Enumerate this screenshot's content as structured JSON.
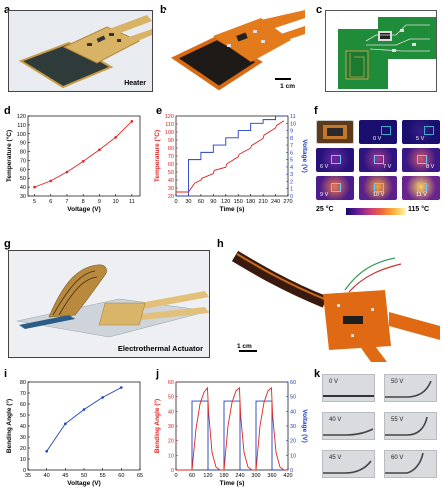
{
  "panels": {
    "a": {
      "label": "a",
      "caption": "Heater"
    },
    "b": {
      "label": "b",
      "scale": "1 cm"
    },
    "c": {
      "label": "c"
    },
    "d": {
      "label": "d"
    },
    "e": {
      "label": "e"
    },
    "f": {
      "label": "f",
      "frames": [
        "0 V",
        "5 V",
        "6 V",
        "7 V",
        "8 V",
        "9 V",
        "10 V",
        "11 V"
      ],
      "scale_min": "25 °C",
      "scale_max": "115 °C"
    },
    "g": {
      "label": "g",
      "caption": "Electrothermal Actuator"
    },
    "h": {
      "label": "h",
      "scale": "1 cm"
    },
    "i": {
      "label": "i"
    },
    "j": {
      "label": "j"
    },
    "k": {
      "label": "k",
      "frames": [
        "0 V",
        "50 V",
        "40 V",
        "55 V",
        "45 V",
        "60 V"
      ]
    }
  },
  "chart_data": [
    {
      "id": "d",
      "type": "line",
      "xlabel": "Voltage (V)",
      "ylabel": "Temperature (°C)",
      "x": [
        5,
        6,
        7,
        8,
        9,
        10,
        11
      ],
      "series": [
        {
          "values": [
            40,
            47,
            57,
            69,
            82,
            96,
            114
          ],
          "color": "#e32222"
        }
      ],
      "xlim": [
        4.6,
        11.5
      ],
      "ylim": [
        30,
        120
      ],
      "xticks": [
        5,
        6,
        7,
        8,
        9,
        10,
        11
      ],
      "yticks": [
        30,
        40,
        50,
        60,
        70,
        80,
        90,
        100,
        110,
        120
      ]
    },
    {
      "id": "e",
      "type": "line",
      "xlabel": "Time (s)",
      "ylabel": "Temperature (°C)",
      "y2label": "Voltage (V)",
      "xlim": [
        0,
        270
      ],
      "ylim": [
        20,
        120
      ],
      "y2lim": [
        0,
        11
      ],
      "xticks": [
        0,
        30,
        60,
        90,
        120,
        150,
        180,
        210,
        240,
        270
      ],
      "yticks": [
        20,
        30,
        40,
        50,
        60,
        70,
        80,
        90,
        100,
        110,
        120
      ],
      "y2ticks": [
        0,
        1,
        2,
        3,
        4,
        5,
        6,
        7,
        8,
        9,
        10,
        11
      ],
      "temperature": {
        "color": "#e32222",
        "t": [
          0,
          30,
          45,
          60,
          62,
          90,
          92,
          120,
          122,
          150,
          152,
          180,
          182,
          210,
          212,
          240,
          242,
          260
        ],
        "v": [
          25,
          25,
          36,
          40,
          42,
          48,
          52,
          56,
          60,
          69,
          72,
          80,
          83,
          92,
          96,
          105,
          108,
          114
        ]
      },
      "voltage": {
        "color": "#1f3fbf",
        "t": [
          0,
          30,
          30,
          60,
          60,
          90,
          90,
          120,
          120,
          150,
          150,
          180,
          180,
          210,
          210,
          240,
          240,
          260
        ],
        "v": [
          0,
          0,
          5,
          5,
          6,
          6,
          7,
          7,
          8,
          8,
          9,
          9,
          10,
          10,
          10.5,
          10.5,
          11,
          11
        ]
      }
    },
    {
      "id": "i",
      "type": "line",
      "xlabel": "Voltage (V)",
      "ylabel": "Bending Angle (°)",
      "x": [
        40,
        45,
        50,
        55,
        60
      ],
      "series": [
        {
          "values": [
            17,
            42,
            55,
            66,
            75
          ],
          "color": "#1f3fbf"
        }
      ],
      "xlim": [
        35,
        65
      ],
      "ylim": [
        0,
        80
      ],
      "xticks": [
        35,
        40,
        45,
        50,
        55,
        60,
        65
      ],
      "yticks": [
        0,
        10,
        20,
        30,
        40,
        50,
        60,
        70,
        80
      ]
    },
    {
      "id": "j",
      "type": "line",
      "xlabel": "Time (s)",
      "ylabel": "Bending Angle (°)",
      "y2label": "Voltage (V)",
      "xlim": [
        0,
        420
      ],
      "ylim": [
        0,
        60
      ],
      "y2lim": [
        0,
        60
      ],
      "xticks": [
        0,
        60,
        120,
        180,
        240,
        300,
        360,
        420
      ],
      "yticks": [
        0,
        10,
        20,
        30,
        40,
        50,
        60
      ],
      "y2ticks": [
        0,
        10,
        20,
        30,
        40,
        50,
        60
      ],
      "angle": {
        "color": "#e32222",
        "t": [
          0,
          60,
          75,
          90,
          105,
          118,
          122,
          135,
          150,
          165,
          180,
          195,
          210,
          225,
          238,
          242,
          255,
          270,
          285,
          300,
          315,
          330,
          345,
          358,
          362,
          375,
          390,
          405,
          420
        ],
        "v": [
          0,
          0,
          28,
          45,
          53,
          56,
          40,
          12,
          2,
          0,
          0,
          30,
          46,
          54,
          56,
          38,
          12,
          2,
          0,
          0,
          30,
          46,
          54,
          56,
          38,
          12,
          2,
          0,
          0
        ]
      },
      "voltage": {
        "color": "#1f3fbf",
        "t": [
          0,
          60,
          60,
          120,
          120,
          180,
          180,
          240,
          240,
          300,
          300,
          360,
          360,
          420
        ],
        "v": [
          0,
          0,
          47,
          47,
          0,
          0,
          47,
          47,
          0,
          0,
          47,
          47,
          0,
          0
        ]
      }
    }
  ]
}
